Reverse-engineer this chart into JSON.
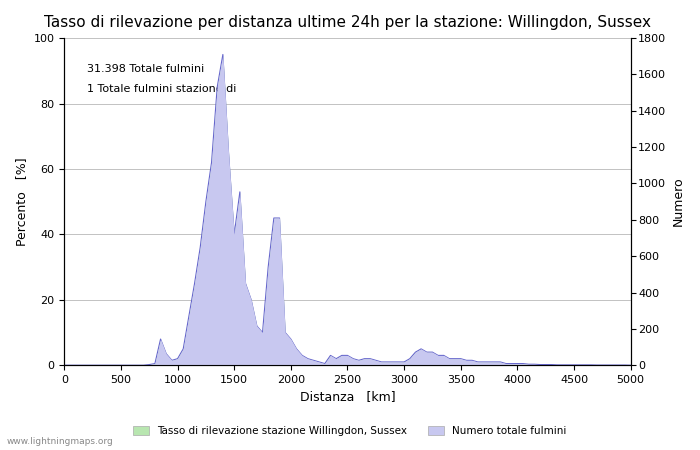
{
  "title": "Tasso di rilevazione per distanza ultime 24h per la stazione: Willingdon, Sussex",
  "xlabel": "Distanza   [km]",
  "ylabel_left": "Percento   [%]",
  "ylabel_right": "Numero",
  "annotation_line1": "31.398 Totale fulmini",
  "annotation_line2": "1 Totale fulmini stazione di",
  "xlim": [
    0,
    5000
  ],
  "ylim_left": [
    0,
    100
  ],
  "ylim_right": [
    0,
    1800
  ],
  "xticks": [
    0,
    500,
    1000,
    1500,
    2000,
    2500,
    3000,
    3500,
    4000,
    4500,
    5000
  ],
  "yticks_left": [
    0,
    20,
    40,
    60,
    80,
    100
  ],
  "yticks_right": [
    0,
    200,
    400,
    600,
    800,
    1000,
    1200,
    1400,
    1600,
    1800
  ],
  "fill_color_green": "#b8e6b0",
  "fill_color_blue": "#c8c8f0",
  "line_color": "#6666cc",
  "bg_color": "#ffffff",
  "legend_label_green": "Tasso di rilevazione stazione Willingdon, Sussex",
  "legend_label_blue": "Numero totale fulmini",
  "watermark": "www.lightningmaps.org",
  "title_fontsize": 11,
  "axis_fontsize": 9,
  "tick_fontsize": 8,
  "annotation_fontsize": 8
}
